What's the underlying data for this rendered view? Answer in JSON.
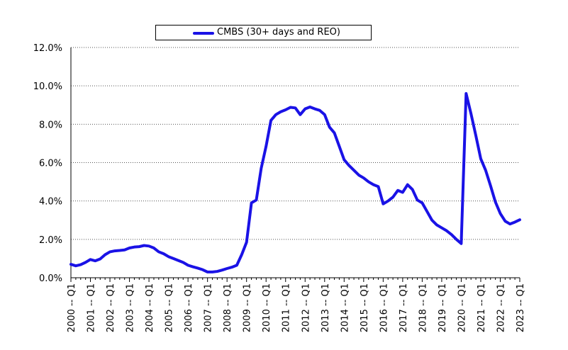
{
  "chart_data": {
    "type": "line",
    "title": "",
    "xlabel": "",
    "ylabel": "",
    "ylim": [
      0,
      12
    ],
    "y_ticks": [
      "0.0%",
      "2.0%",
      "4.0%",
      "6.0%",
      "8.0%",
      "10.0%",
      "12.0%"
    ],
    "x_ticks": [
      "2000 -- Q1",
      "2001 -- Q1",
      "2002 -- Q1",
      "2003 -- Q1",
      "2004 -- Q1",
      "2005 -- Q1",
      "2006 -- Q1",
      "2007 -- Q1",
      "2008 -- Q1",
      "2009 -- Q1",
      "2010 -- Q1",
      "2011 -- Q1",
      "2012 -- Q1",
      "2013 -- Q1",
      "2014 -- Q1",
      "2015 -- Q1",
      "2016 -- Q1",
      "2017 -- Q1",
      "2018 -- Q1",
      "2019 -- Q1",
      "2020 -- Q1",
      "2021 -- Q1",
      "2022 -- Q1",
      "2023 -- Q1"
    ],
    "grid": "horizontal dotted",
    "legend": "top-center",
    "series": [
      {
        "name": "CMBS (30+ days and REO)",
        "color": "#1a12e6",
        "points": [
          [
            "2000 -- Q1",
            0.7
          ],
          [
            "2000 -- Q2",
            0.62
          ],
          [
            "2000 -- Q3",
            0.68
          ],
          [
            "2000 -- Q4",
            0.8
          ],
          [
            "2001 -- Q1",
            0.95
          ],
          [
            "2001 -- Q2",
            0.88
          ],
          [
            "2001 -- Q3",
            0.98
          ],
          [
            "2001 -- Q4",
            1.2
          ],
          [
            "2002 -- Q1",
            1.35
          ],
          [
            "2002 -- Q2",
            1.4
          ],
          [
            "2002 -- Q3",
            1.42
          ],
          [
            "2002 -- Q4",
            1.45
          ],
          [
            "2003 -- Q1",
            1.55
          ],
          [
            "2003 -- Q2",
            1.6
          ],
          [
            "2003 -- Q3",
            1.62
          ],
          [
            "2003 -- Q4",
            1.68
          ],
          [
            "2004 -- Q1",
            1.65
          ],
          [
            "2004 -- Q2",
            1.55
          ],
          [
            "2004 -- Q3",
            1.35
          ],
          [
            "2004 -- Q4",
            1.25
          ],
          [
            "2005 -- Q1",
            1.1
          ],
          [
            "2005 -- Q2",
            1.0
          ],
          [
            "2005 -- Q3",
            0.9
          ],
          [
            "2005 -- Q4",
            0.8
          ],
          [
            "2006 -- Q1",
            0.65
          ],
          [
            "2006 -- Q2",
            0.57
          ],
          [
            "2006 -- Q3",
            0.5
          ],
          [
            "2006 -- Q4",
            0.42
          ],
          [
            "2007 -- Q1",
            0.3
          ],
          [
            "2007 -- Q2",
            0.3
          ],
          [
            "2007 -- Q3",
            0.33
          ],
          [
            "2007 -- Q4",
            0.4
          ],
          [
            "2008 -- Q1",
            0.48
          ],
          [
            "2008 -- Q2",
            0.55
          ],
          [
            "2008 -- Q3",
            0.65
          ],
          [
            "2008 -- Q4",
            1.2
          ],
          [
            "2009 -- Q1",
            1.85
          ],
          [
            "2009 -- Q2",
            3.9
          ],
          [
            "2009 -- Q3",
            4.05
          ],
          [
            "2009 -- Q4",
            5.7
          ],
          [
            "2010 -- Q1",
            6.85
          ],
          [
            "2010 -- Q2",
            8.2
          ],
          [
            "2010 -- Q3",
            8.5
          ],
          [
            "2010 -- Q4",
            8.65
          ],
          [
            "2011 -- Q1",
            8.75
          ],
          [
            "2011 -- Q2",
            8.88
          ],
          [
            "2011 -- Q3",
            8.85
          ],
          [
            "2011 -- Q4",
            8.5
          ],
          [
            "2012 -- Q1",
            8.8
          ],
          [
            "2012 -- Q2",
            8.9
          ],
          [
            "2012 -- Q3",
            8.8
          ],
          [
            "2012 -- Q4",
            8.72
          ],
          [
            "2013 -- Q1",
            8.5
          ],
          [
            "2013 -- Q2",
            7.85
          ],
          [
            "2013 -- Q3",
            7.55
          ],
          [
            "2013 -- Q4",
            6.85
          ],
          [
            "2014 -- Q1",
            6.15
          ],
          [
            "2014 -- Q2",
            5.85
          ],
          [
            "2014 -- Q3",
            5.6
          ],
          [
            "2014 -- Q4",
            5.35
          ],
          [
            "2015 -- Q1",
            5.2
          ],
          [
            "2015 -- Q2",
            5.0
          ],
          [
            "2015 -- Q3",
            4.85
          ],
          [
            "2015 -- Q4",
            4.75
          ],
          [
            "2016 -- Q1",
            3.85
          ],
          [
            "2016 -- Q2",
            4.0
          ],
          [
            "2016 -- Q3",
            4.2
          ],
          [
            "2016 -- Q4",
            4.55
          ],
          [
            "2017 -- Q1",
            4.45
          ],
          [
            "2017 -- Q2",
            4.85
          ],
          [
            "2017 -- Q3",
            4.6
          ],
          [
            "2017 -- Q4",
            4.05
          ],
          [
            "2018 -- Q1",
            3.9
          ],
          [
            "2018 -- Q2",
            3.45
          ],
          [
            "2018 -- Q3",
            3.0
          ],
          [
            "2018 -- Q4",
            2.75
          ],
          [
            "2019 -- Q1",
            2.6
          ],
          [
            "2019 -- Q2",
            2.45
          ],
          [
            "2019 -- Q3",
            2.25
          ],
          [
            "2019 -- Q4",
            2.0
          ],
          [
            "2020 -- Q1",
            1.78
          ],
          [
            "2020 -- Q2",
            9.6
          ],
          [
            "2020 -- Q3",
            8.55
          ],
          [
            "2020 -- Q4",
            7.4
          ],
          [
            "2021 -- Q1",
            6.2
          ],
          [
            "2021 -- Q2",
            5.6
          ],
          [
            "2021 -- Q3",
            4.8
          ],
          [
            "2021 -- Q4",
            3.95
          ],
          [
            "2022 -- Q1",
            3.35
          ],
          [
            "2022 -- Q2",
            2.95
          ],
          [
            "2022 -- Q3",
            2.8
          ],
          [
            "2022 -- Q4",
            2.9
          ],
          [
            "2023 -- Q1",
            3.02
          ]
        ]
      }
    ]
  }
}
